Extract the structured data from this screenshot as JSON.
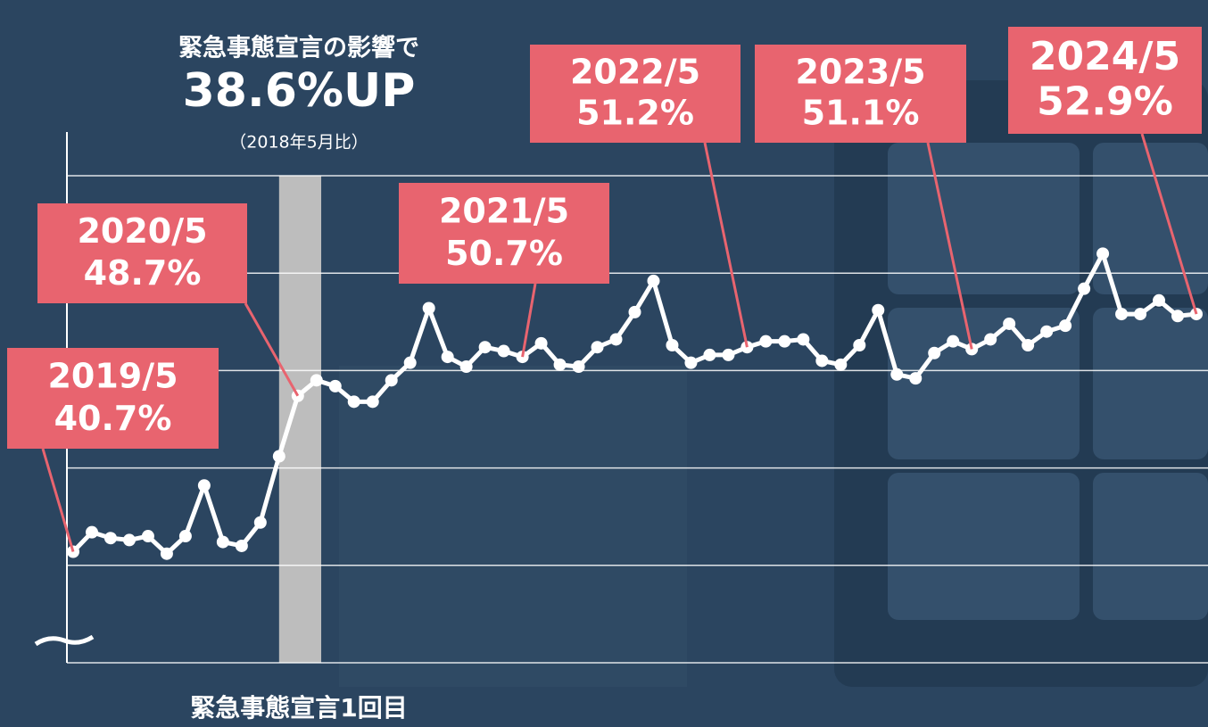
{
  "chart_data": {
    "type": "line",
    "annotation_heading": "緊急事態宣言の影響で",
    "annotation_value": "38.6%UP",
    "annotation_note": "（2018年5月比）",
    "band_label": "緊急事態宣言1回目",
    "color": "#ffffff",
    "grid": true,
    "ylim": [
      35,
      60
    ],
    "yticks": [
      35,
      40,
      45,
      50,
      55,
      60
    ],
    "categories": [
      "2019/5",
      null,
      null,
      null,
      null,
      null,
      null,
      null,
      null,
      null,
      null,
      null,
      "2020/5",
      null,
      null,
      null,
      null,
      null,
      null,
      null,
      null,
      null,
      null,
      null,
      "2021/5",
      null,
      null,
      null,
      null,
      null,
      null,
      null,
      null,
      null,
      null,
      null,
      "2022/5",
      null,
      null,
      null,
      null,
      null,
      null,
      null,
      null,
      null,
      null,
      null,
      "2023/5",
      null,
      null,
      null,
      null,
      null,
      null,
      null,
      null,
      null,
      null,
      null,
      "2024/5"
    ],
    "values": [
      40.7,
      41.7,
      41.4,
      41.3,
      41.5,
      40.6,
      41.5,
      44.1,
      41.2,
      41.0,
      42.2,
      45.6,
      48.7,
      49.5,
      49.2,
      48.4,
      48.4,
      49.5,
      50.4,
      53.2,
      50.7,
      50.2,
      51.2,
      51.0,
      50.7,
      51.4,
      50.3,
      50.2,
      51.2,
      51.6,
      53.0,
      54.6,
      51.3,
      50.4,
      50.8,
      50.8,
      51.2,
      51.5,
      51.5,
      51.6,
      50.5,
      50.3,
      51.3,
      53.1,
      49.8,
      49.6,
      50.9,
      51.5,
      51.1,
      51.6,
      52.4,
      51.3,
      52.0,
      52.3,
      54.2,
      56.0,
      52.9,
      52.9,
      53.6,
      52.8,
      52.9
    ],
    "value_labels": [
      "40.7%",
      null,
      null,
      null,
      null,
      null,
      null,
      null,
      null,
      null,
      null,
      null,
      "48.7%",
      null,
      null,
      null,
      null,
      null,
      null,
      null,
      null,
      null,
      null,
      null,
      "50.7%",
      null,
      null,
      null,
      null,
      null,
      null,
      null,
      null,
      null,
      null,
      null,
      "51.2%",
      null,
      null,
      null,
      null,
      null,
      null,
      null,
      null,
      null,
      null,
      null,
      "51.1%",
      null,
      null,
      null,
      null,
      null,
      null,
      null,
      null,
      null,
      null,
      null,
      "52.9%"
    ]
  }
}
